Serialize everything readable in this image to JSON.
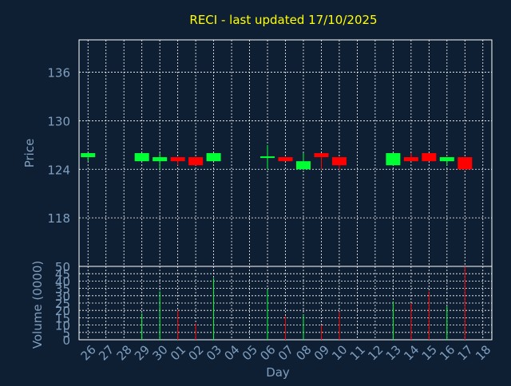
{
  "colors": {
    "background": "#0f1f33",
    "frame": "#ffffff",
    "grid": "#ffffff",
    "title": "#ffff00",
    "axis_text": "#7f9fbf",
    "up": "#00ff33",
    "down": "#ff0000"
  },
  "chart_data": [
    {
      "type": "candlestick",
      "title": "RECI - last updated 17/10/2025",
      "ylabel": "Price",
      "ylim": [
        112,
        140
      ],
      "yticks": [
        118,
        124,
        130,
        136
      ],
      "grid": true,
      "categories": [
        "26",
        "27",
        "28",
        "29",
        "30",
        "01",
        "02",
        "03",
        "04",
        "05",
        "06",
        "07",
        "08",
        "09",
        "10",
        "11",
        "12",
        "13",
        "14",
        "15",
        "16",
        "17",
        "18"
      ],
      "series": [
        {
          "ohlc": [
            {
              "x": "26",
              "open": 125.5,
              "high": 126.0,
              "low": 125.0,
              "close": 126.0
            },
            {
              "x": "29",
              "open": 125.0,
              "high": 126.0,
              "low": 125.0,
              "close": 126.0
            },
            {
              "x": "30",
              "open": 125.0,
              "high": 126.0,
              "low": 124.0,
              "close": 125.5
            },
            {
              "x": "01",
              "open": 125.5,
              "high": 125.5,
              "low": 124.5,
              "close": 125.0
            },
            {
              "x": "02",
              "open": 125.5,
              "high": 125.5,
              "low": 124.5,
              "close": 124.5
            },
            {
              "x": "03",
              "open": 125.0,
              "high": 126.0,
              "low": 125.0,
              "close": 126.0
            },
            {
              "x": "06",
              "open": 125.4,
              "high": 127.0,
              "low": 124.0,
              "close": 125.6
            },
            {
              "x": "07",
              "open": 125.5,
              "high": 125.5,
              "low": 125.0,
              "close": 125.0
            },
            {
              "x": "08",
              "open": 124.0,
              "high": 126.0,
              "low": 124.0,
              "close": 125.0
            },
            {
              "x": "09",
              "open": 126.0,
              "high": 126.0,
              "low": 124.0,
              "close": 125.5
            },
            {
              "x": "10",
              "open": 125.5,
              "high": 125.5,
              "low": 124.0,
              "close": 124.5
            },
            {
              "x": "13",
              "open": 124.5,
              "high": 126.0,
              "low": 124.5,
              "close": 126.0
            },
            {
              "x": "14",
              "open": 125.5,
              "high": 126.0,
              "low": 125.0,
              "close": 125.0
            },
            {
              "x": "15",
              "open": 126.0,
              "high": 126.0,
              "low": 125.0,
              "close": 125.0
            },
            {
              "x": "16",
              "open": 125.0,
              "high": 125.5,
              "low": 124.5,
              "close": 125.5
            },
            {
              "x": "17",
              "open": 125.5,
              "high": 125.5,
              "low": 124.0,
              "close": 124.0
            }
          ]
        }
      ]
    },
    {
      "type": "bar",
      "ylabel": "Volume (0000)",
      "xlabel": "Day",
      "ylim": [
        0,
        50
      ],
      "yticks": [
        0,
        5,
        10,
        15,
        20,
        25,
        30,
        35,
        40,
        45,
        50
      ],
      "grid": true,
      "categories": [
        "26",
        "27",
        "28",
        "29",
        "30",
        "01",
        "02",
        "03",
        "04",
        "05",
        "06",
        "07",
        "08",
        "09",
        "10",
        "11",
        "12",
        "13",
        "14",
        "15",
        "16",
        "17",
        "18"
      ],
      "series": [
        {
          "values": [
            {
              "x": "29",
              "value": 18,
              "direction": "up"
            },
            {
              "x": "30",
              "value": 33,
              "direction": "up"
            },
            {
              "x": "01",
              "value": 20,
              "direction": "down"
            },
            {
              "x": "02",
              "value": 11,
              "direction": "down"
            },
            {
              "x": "03",
              "value": 42,
              "direction": "up"
            },
            {
              "x": "06",
              "value": 34,
              "direction": "up"
            },
            {
              "x": "07",
              "value": 16,
              "direction": "down"
            },
            {
              "x": "08",
              "value": 17,
              "direction": "up"
            },
            {
              "x": "09",
              "value": 10,
              "direction": "down"
            },
            {
              "x": "10",
              "value": 19,
              "direction": "down"
            },
            {
              "x": "13",
              "value": 26,
              "direction": "up"
            },
            {
              "x": "14",
              "value": 25,
              "direction": "down"
            },
            {
              "x": "15",
              "value": 33,
              "direction": "down"
            },
            {
              "x": "16",
              "value": 23,
              "direction": "up"
            },
            {
              "x": "17",
              "value": 50,
              "direction": "down"
            }
          ]
        }
      ]
    }
  ]
}
